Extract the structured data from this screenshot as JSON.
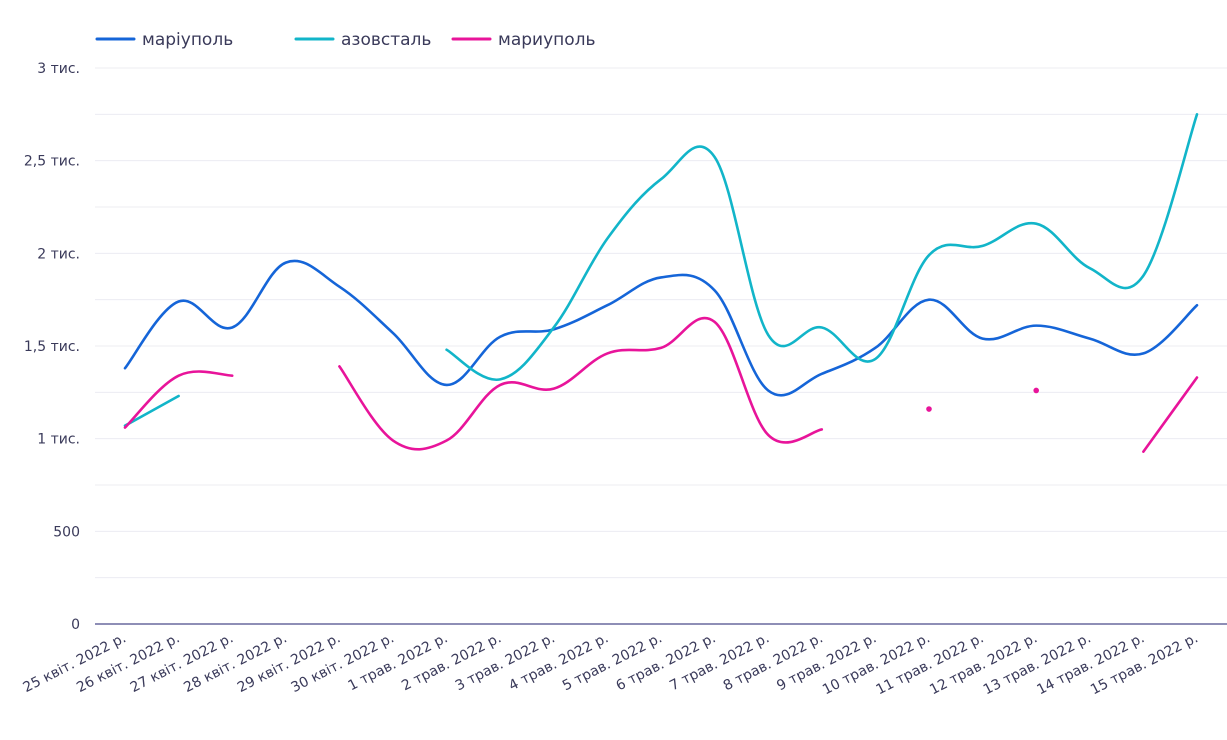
{
  "chart_data": {
    "type": "line",
    "title": "",
    "xlabel": "",
    "ylabel": "",
    "ylim": [
      0,
      3000
    ],
    "yticks": [
      {
        "value": 0,
        "label": "0"
      },
      {
        "value": 500,
        "label": "500"
      },
      {
        "value": 1000,
        "label": "1 тис."
      },
      {
        "value": 1500,
        "label": "1,5 тис."
      },
      {
        "value": 2000,
        "label": "2 тис."
      },
      {
        "value": 2500,
        "label": "2,5 тис."
      },
      {
        "value": 3000,
        "label": "3 тис."
      }
    ],
    "grid": true,
    "legend_position": "top-left",
    "categories": [
      "25 квіт. 2022 р.",
      "26 квіт. 2022 р.",
      "27 квіт. 2022 р.",
      "28 квіт. 2022 р.",
      "29 квіт. 2022 р.",
      "30 квіт. 2022 р.",
      "1 трав. 2022 р.",
      "2 трав. 2022 р.",
      "3 трав. 2022 р.",
      "4 трав. 2022 р.",
      "5 трав. 2022 р.",
      "6 трав. 2022 р.",
      "7 трав. 2022 р.",
      "8 трав. 2022 р.",
      "9 трав. 2022 р.",
      "10 трав. 2022 р.",
      "11 трав. 2022 р.",
      "12 трав. 2022 р.",
      "13 трав. 2022 р.",
      "14 трав. 2022 р.",
      "15 трав. 2022 р."
    ],
    "series": [
      {
        "name": "маріуполь",
        "color": "#1565d8",
        "values": [
          1380,
          1740,
          1600,
          1950,
          1820,
          1570,
          1290,
          1550,
          1590,
          1720,
          1870,
          1800,
          1260,
          1350,
          1490,
          1750,
          1540,
          1610,
          1540,
          1460,
          1720
        ]
      },
      {
        "name": "азовсталь",
        "color": "#12b5c9",
        "values": [
          1070,
          1230,
          null,
          null,
          null,
          null,
          1480,
          1320,
          1600,
          2080,
          2400,
          2520,
          1560,
          1600,
          1430,
          1990,
          2040,
          2160,
          1920,
          1880,
          2750
        ]
      },
      {
        "name": "мариуполь",
        "color": "#e8149a",
        "values": [
          1060,
          1340,
          1340,
          null,
          1390,
          990,
          990,
          1290,
          1270,
          1460,
          1490,
          1630,
          1020,
          1050,
          null,
          1160,
          null,
          1260,
          null,
          930,
          1330
        ]
      }
    ]
  }
}
